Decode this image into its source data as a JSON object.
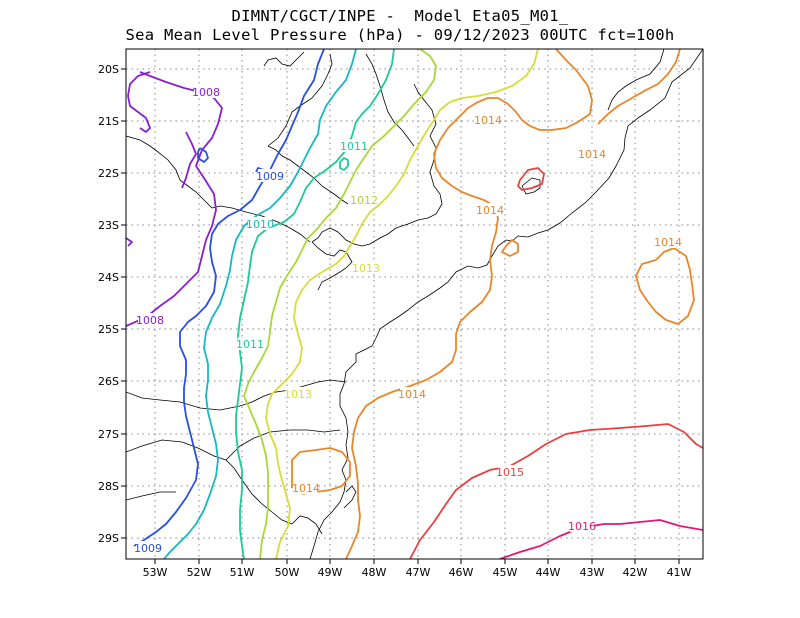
{
  "header": {
    "title_line1": "DIMNT/CGCT/INPE -  Model Eta05_M01_",
    "title_line2": "Sea Mean Level Pressure (hPa) - 09/12/2023 00UTC fct=100h"
  },
  "map": {
    "lon_labels": [
      "53W",
      "52W",
      "51W",
      "50W",
      "49W",
      "48W",
      "47W",
      "46W",
      "45W",
      "44W",
      "43W",
      "42W",
      "41W"
    ],
    "lat_labels": [
      "20S",
      "21S",
      "22S",
      "23S",
      "24S",
      "25S",
      "26S",
      "27S",
      "28S",
      "29S"
    ],
    "colors": {
      "c1008": "#8a1fd0",
      "c1009": "#2a4fe0",
      "c1010": "#18b8c0",
      "c1011": "#1ec89a",
      "c1012": "#a8d838",
      "c1013": "#d8dc38",
      "c1014": "#e8862a",
      "c1015": "#e84040",
      "c1016": "#e01878",
      "coast": "#000000",
      "grid": "#888888"
    },
    "contour_labels": [
      {
        "text": "1008",
        "color": "c1008"
      },
      {
        "text": "1008",
        "color": "c1008"
      },
      {
        "text": "1009",
        "color": "c1009"
      },
      {
        "text": "1009",
        "color": "c1009"
      },
      {
        "text": "1010",
        "color": "c1010"
      },
      {
        "text": "1011",
        "color": "c1011"
      },
      {
        "text": "1011",
        "color": "c1011"
      },
      {
        "text": "1012",
        "color": "c1012"
      },
      {
        "text": "1013",
        "color": "c1013"
      },
      {
        "text": "1013",
        "color": "c1013"
      },
      {
        "text": "1014",
        "color": "c1014"
      },
      {
        "text": "1014",
        "color": "c1014"
      },
      {
        "text": "1014",
        "color": "c1014"
      },
      {
        "text": "1014",
        "color": "c1014"
      },
      {
        "text": "1014",
        "color": "c1014"
      },
      {
        "text": "1014",
        "color": "c1014"
      },
      {
        "text": "1015",
        "color": "c1015"
      },
      {
        "text": "1016",
        "color": "c1016"
      }
    ]
  }
}
